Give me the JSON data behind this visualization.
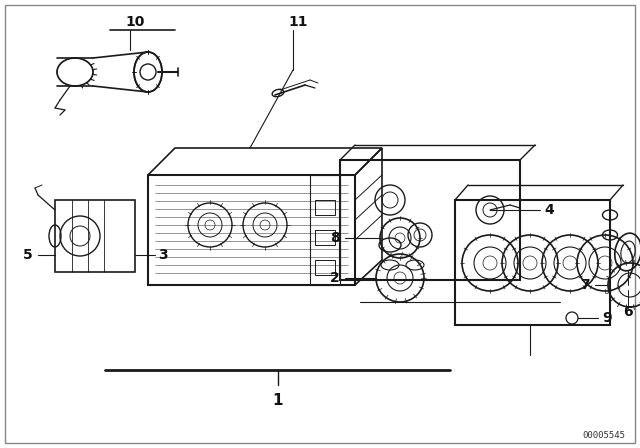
{
  "bg_color": "#ffffff",
  "line_color": "#1a1a1a",
  "text_color": "#111111",
  "fig_width": 6.4,
  "fig_height": 4.48,
  "dpi": 100,
  "watermark": "00005545",
  "border_color": "#cccccc"
}
